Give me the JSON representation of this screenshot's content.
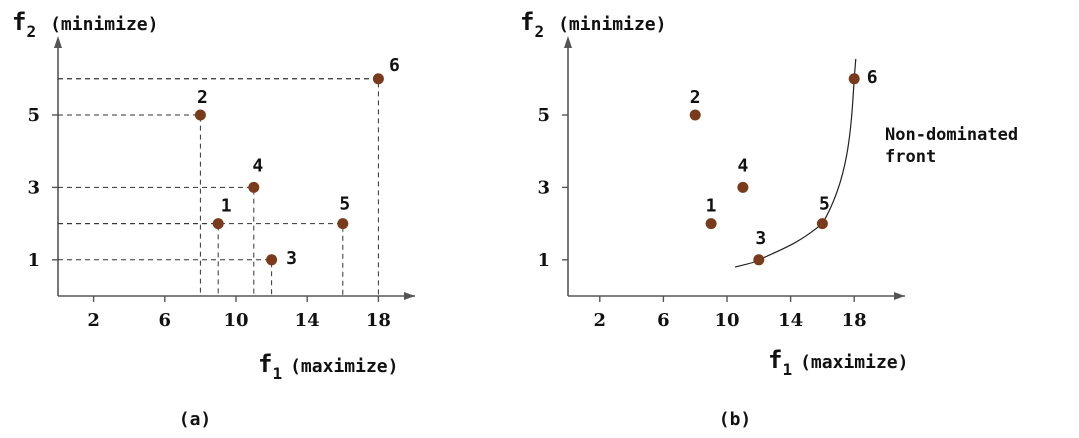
{
  "chart_data": [
    {
      "type": "scatter",
      "panel_label": "(a)",
      "xlabel_main": "f",
      "xlabel_sub": "1",
      "xlabel_tail": "(maximize)",
      "ylabel_main": "f",
      "ylabel_sub": "2",
      "ylabel_tail": "(minimize)",
      "xticks": [
        "2",
        "6",
        "10",
        "14",
        "18"
      ],
      "yticks": [
        "1",
        "3",
        "5"
      ],
      "xlim": [
        0,
        20
      ],
      "ylim": [
        0,
        6.6
      ],
      "show_guides": true,
      "points": [
        {
          "label": "1",
          "x": 9,
          "y": 2
        },
        {
          "label": "2",
          "x": 8,
          "y": 5
        },
        {
          "label": "3",
          "x": 12,
          "y": 1
        },
        {
          "label": "4",
          "x": 11,
          "y": 3
        },
        {
          "label": "5",
          "x": 16,
          "y": 2
        },
        {
          "label": "6",
          "x": 18,
          "y": 6
        }
      ],
      "point_color": "#7a3a1c"
    },
    {
      "type": "scatter",
      "panel_label": "(b)",
      "xlabel_main": "f",
      "xlabel_sub": "1",
      "xlabel_tail": "(maximize)",
      "ylabel_main": "f",
      "ylabel_sub": "2",
      "ylabel_tail": "(minimize)",
      "xticks": [
        "2",
        "6",
        "10",
        "14",
        "18"
      ],
      "yticks": [
        "1",
        "3",
        "5"
      ],
      "xlim": [
        0,
        20
      ],
      "ylim": [
        0,
        6.6
      ],
      "show_guides": false,
      "points": [
        {
          "label": "1",
          "x": 9,
          "y": 2
        },
        {
          "label": "2",
          "x": 8,
          "y": 5
        },
        {
          "label": "3",
          "x": 12,
          "y": 1
        },
        {
          "label": "4",
          "x": 11,
          "y": 3
        },
        {
          "label": "5",
          "x": 16,
          "y": 2
        },
        {
          "label": "6",
          "x": 18,
          "y": 6
        }
      ],
      "front_label_line1": "Non-dominated",
      "front_label_line2": "front",
      "point_color": "#7a3a1c"
    }
  ]
}
